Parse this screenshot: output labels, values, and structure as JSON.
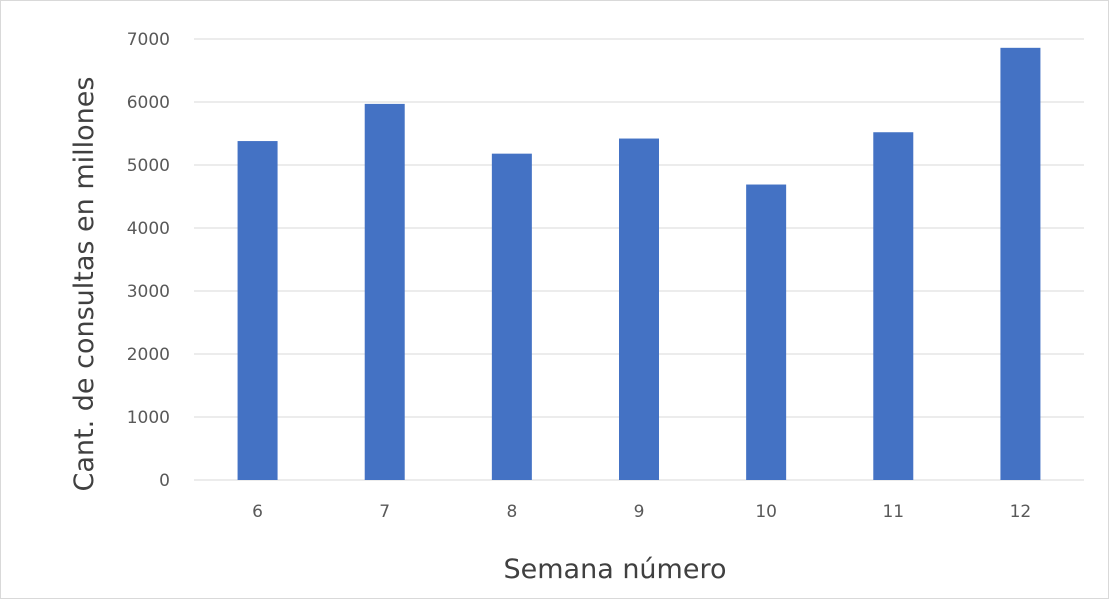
{
  "chart_data": {
    "type": "bar",
    "categories": [
      "6",
      "7",
      "8",
      "9",
      "10",
      "11",
      "12"
    ],
    "values": [
      5380,
      5970,
      5180,
      5420,
      4690,
      5520,
      6860
    ],
    "xlabel": "Semana número",
    "ylabel": "Cant. de consultas en millones",
    "ylim": [
      0,
      7000
    ],
    "yticks": [
      0,
      1000,
      2000,
      3000,
      4000,
      5000,
      6000,
      7000
    ],
    "grid": true,
    "legend": "none",
    "colors": {
      "bar": "#4472c4",
      "grid": "#d9d9d9",
      "tick_text": "#595959",
      "axis_title": "#404040"
    }
  }
}
